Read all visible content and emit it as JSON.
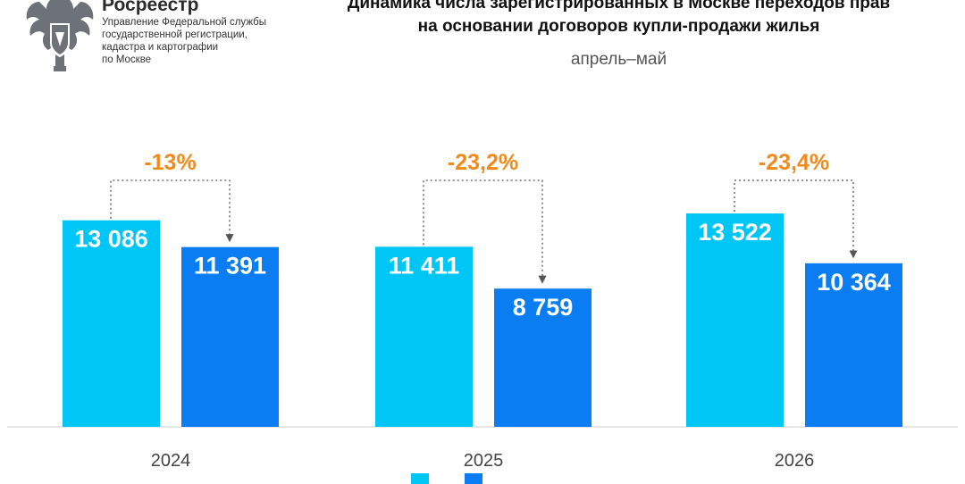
{
  "header": {
    "logo_name": "Росреестр",
    "logo_org": "Управление Федеральной службы\nгосударственной регистрации,\nкадастра и картографии\nпо Москве",
    "emblem_icon": "double-headed-eagle-emblem"
  },
  "colors": {
    "april": "#00c6f5",
    "may": "#0a7df2",
    "change_label": "#f08a1c",
    "bar_text": "#ffffff",
    "axis_text": "#444444",
    "axis_line": "#cccccc",
    "bracket": "#555555"
  },
  "chart_data": {
    "type": "bar",
    "title": "Динамика числа зарегистрированных в Москве переходов прав\nна основании договоров купли-продажи жилья",
    "subtitle": "апрель–май",
    "categories": [
      "2024",
      "2025",
      "2026"
    ],
    "series": [
      {
        "values": [
          13086,
          11411,
          13522
        ],
        "labels": [
          "13 086",
          "11 411",
          "13 522"
        ]
      },
      {
        "values": [
          11391,
          8759,
          10364
        ],
        "labels": [
          "11 391",
          "8 759",
          "10 364"
        ]
      }
    ],
    "annotations": [
      "-13%",
      "-23,2%",
      "-23,4%"
    ],
    "ylim": [
      0,
      14600
    ],
    "grid": false
  }
}
